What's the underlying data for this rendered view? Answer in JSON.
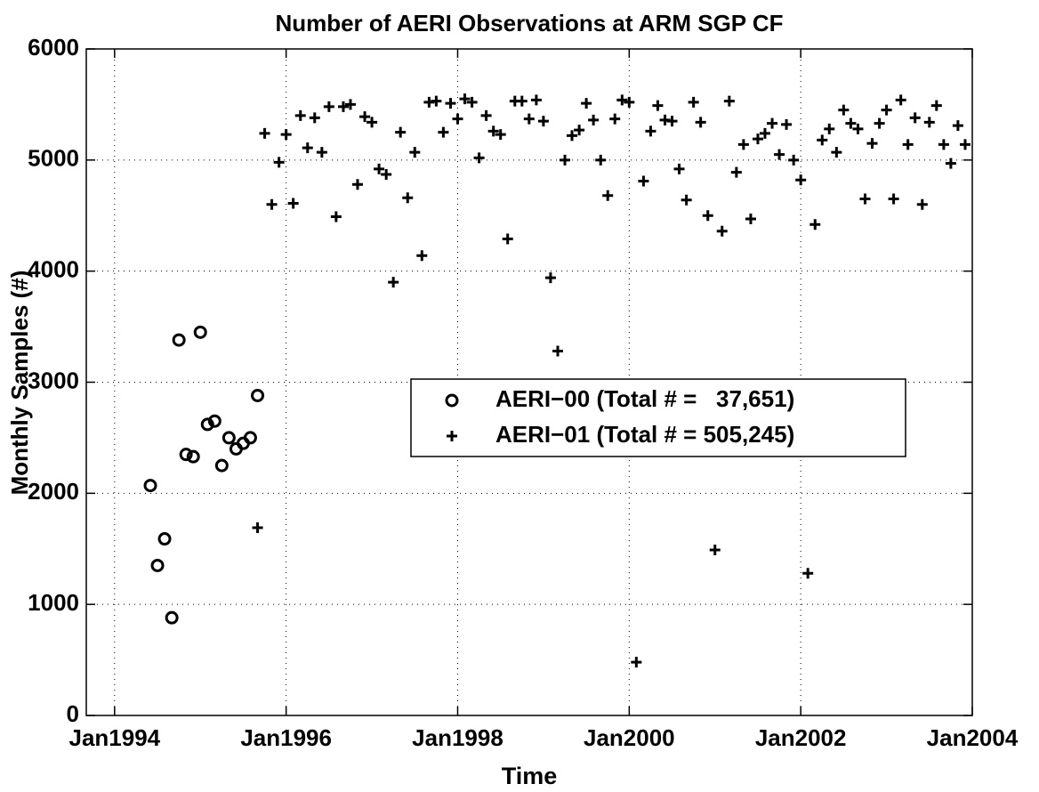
{
  "chart_data": {
    "type": "scatter",
    "title": "Number of AERI Observations at ARM SGP CF",
    "x_label": "Time",
    "y_label": "Monthly Samples (#)",
    "xlim": [
      1993.67,
      2004
    ],
    "ylim": [
      0,
      6000
    ],
    "xticks": [
      {
        "value": 1994,
        "label": "Jan1994"
      },
      {
        "value": 1996,
        "label": "Jan1996"
      },
      {
        "value": 1998,
        "label": "Jan1998"
      },
      {
        "value": 2000,
        "label": "Jan2000"
      },
      {
        "value": 2002,
        "label": "Jan2002"
      },
      {
        "value": 2004,
        "label": "Jan2004"
      }
    ],
    "yticks": [
      0,
      1000,
      2000,
      3000,
      4000,
      5000,
      6000
    ],
    "grid": true,
    "legend_loc": "east",
    "series": [
      {
        "name": "AERI−00 (Total # =   37,651)",
        "color": "#000000",
        "marker": "o",
        "x": [
          1994.417,
          1994.5,
          1994.583,
          1994.667,
          1994.75,
          1994.833,
          1994.917,
          1995,
          1995.083,
          1995.167,
          1995.25,
          1995.333,
          1995.417,
          1995.5,
          1995.583,
          1995.667
        ],
        "values": [
          2070,
          1350,
          1590,
          880,
          3380,
          2350,
          2330,
          3450,
          2620,
          2650,
          2250,
          2500,
          2400,
          2450,
          2500,
          2880
        ]
      },
      {
        "name": "AERI−01 (Total # = 505,245)",
        "color": "#000000",
        "marker": "+",
        "x": [
          1995.667,
          1995.75,
          1995.833,
          1995.917,
          1996,
          1996.083,
          1996.167,
          1996.25,
          1996.333,
          1996.417,
          1996.5,
          1996.583,
          1996.667,
          1996.75,
          1996.833,
          1996.917,
          1997,
          1997.083,
          1997.167,
          1997.25,
          1997.333,
          1997.417,
          1997.5,
          1997.583,
          1997.667,
          1997.75,
          1997.833,
          1997.917,
          1998,
          1998.083,
          1998.167,
          1998.25,
          1998.333,
          1998.417,
          1998.5,
          1998.583,
          1998.667,
          1998.75,
          1998.833,
          1998.917,
          1999,
          1999.083,
          1999.167,
          1999.25,
          1999.333,
          1999.417,
          1999.5,
          1999.583,
          1999.667,
          1999.75,
          1999.833,
          1999.917,
          2000,
          2000.083,
          2000.167,
          2000.25,
          2000.333,
          2000.417,
          2000.5,
          2000.583,
          2000.667,
          2000.75,
          2000.833,
          2000.917,
          2001,
          2001.083,
          2001.167,
          2001.25,
          2001.333,
          2001.417,
          2001.5,
          2001.583,
          2001.667,
          2001.75,
          2001.833,
          2001.917,
          2002,
          2002.083,
          2002.167,
          2002.25,
          2002.333,
          2002.417,
          2002.5,
          2002.583,
          2002.667,
          2002.75,
          2002.833,
          2002.917,
          2003,
          2003.083,
          2003.167,
          2003.25,
          2003.333,
          2003.417,
          2003.5,
          2003.583,
          2003.667,
          2003.75,
          2003.833,
          2003.917
        ],
        "values": [
          1690,
          5240,
          4600,
          4980,
          5230,
          4610,
          5400,
          5110,
          5380,
          5070,
          5480,
          4490,
          5480,
          5500,
          4780,
          5390,
          5340,
          4920,
          4870,
          3900,
          5250,
          4660,
          5070,
          4140,
          5520,
          5530,
          5250,
          5510,
          5370,
          5550,
          5520,
          5020,
          5400,
          5260,
          5230,
          4290,
          5530,
          5530,
          5370,
          5540,
          5350,
          3940,
          3280,
          5000,
          5220,
          5270,
          5510,
          5360,
          5000,
          4680,
          5370,
          5540,
          5520,
          480,
          4810,
          5260,
          5490,
          5360,
          5350,
          4920,
          4640,
          5520,
          5340,
          4500,
          1490,
          4360,
          5530,
          4890,
          5140,
          4470,
          5190,
          5240,
          5330,
          5050,
          5320,
          5000,
          4820,
          1280,
          4420,
          5180,
          5280,
          5070,
          5450,
          5330,
          5280,
          4650,
          5150,
          5330,
          5450,
          4650,
          5540,
          5140,
          5380,
          4600,
          5340,
          5490,
          5140,
          4970,
          5310,
          5140
        ]
      }
    ]
  }
}
